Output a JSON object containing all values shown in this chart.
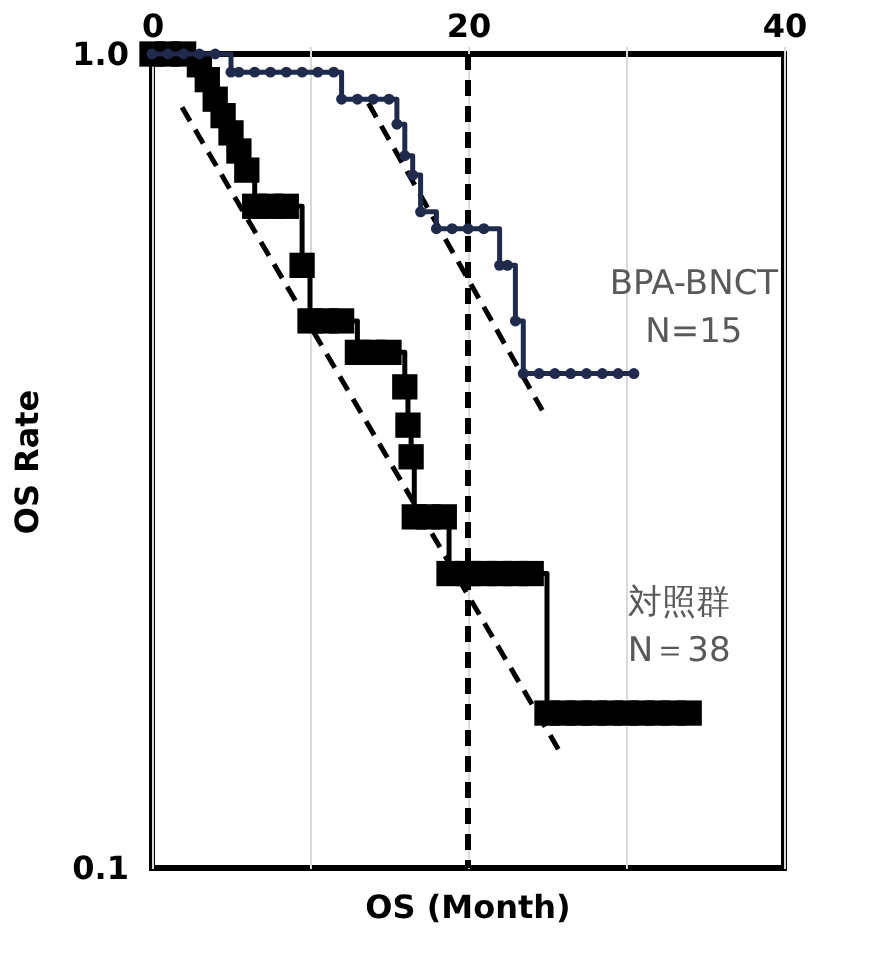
{
  "chart_data": {
    "type": "step",
    "xlabel": "OS (Month)",
    "ylabel": "OS Rate",
    "xlim": [
      0,
      40
    ],
    "xticks": [
      0,
      {
        "value": 10,
        "label": null
      },
      20,
      {
        "value": 30,
        "label": null
      },
      40
    ],
    "ylim": [
      0.1,
      1.0
    ],
    "yticks": [
      {
        "value": 0.1,
        "label": "0.1"
      },
      {
        "value": 1.0,
        "label": "1.0"
      }
    ],
    "log": "y",
    "grid": "x",
    "ref_lines": [
      {
        "axis": "x",
        "value": 20,
        "color": "#000000",
        "line_style": "dashed"
      }
    ],
    "series": [
      {
        "name": "BPA-BNCT\nN=15",
        "marker": "circle",
        "color": "#1f2a4d",
        "x": [
          0,
          1,
          2,
          3,
          4,
          5,
          5.5,
          6.5,
          7.5,
          8.5,
          9.5,
          10.5,
          11.5,
          12,
          13,
          14,
          15,
          15.5,
          16,
          16.5,
          17,
          18,
          19,
          20,
          21,
          22,
          22.5,
          23,
          23.5,
          24.5,
          25.5,
          26.5,
          27.5,
          28.5,
          29.5,
          30.5
        ],
        "values": [
          1,
          1,
          1,
          1,
          1,
          0.95,
          0.95,
          0.95,
          0.95,
          0.95,
          0.95,
          0.95,
          0.95,
          0.88,
          0.88,
          0.88,
          0.88,
          0.82,
          0.75,
          0.71,
          0.64,
          0.61,
          0.61,
          0.61,
          0.61,
          0.55,
          0.55,
          0.47,
          0.405,
          0.405,
          0.405,
          0.405,
          0.405,
          0.405,
          0.405,
          0.405
        ]
      },
      {
        "name": "対照群\nN＝38",
        "marker": "square",
        "color": "#000000",
        "x": [
          0,
          1,
          2,
          3,
          3.5,
          4,
          4.5,
          5,
          5.5,
          6,
          6.5,
          7.5,
          8.5,
          9.5,
          10,
          11,
          12,
          13,
          14,
          15,
          16,
          16.2,
          16.4,
          16.6,
          17.5,
          18.5,
          18.8,
          20,
          21,
          22,
          23,
          24,
          25,
          26,
          27,
          28,
          29,
          30,
          31,
          32,
          33,
          34
        ],
        "values": [
          1,
          1,
          1,
          0.97,
          0.93,
          0.88,
          0.84,
          0.8,
          0.76,
          0.72,
          0.65,
          0.65,
          0.65,
          0.55,
          0.47,
          0.47,
          0.47,
          0.43,
          0.43,
          0.43,
          0.39,
          0.35,
          0.32,
          0.27,
          0.27,
          0.27,
          0.23,
          0.23,
          0.23,
          0.23,
          0.23,
          0.23,
          0.155,
          0.155,
          0.155,
          0.155,
          0.155,
          0.155,
          0.155,
          0.155,
          0.155,
          0.155
        ]
      },
      {
        "type": "line",
        "line_style": "dashed",
        "marker": "none",
        "color": "#000000",
        "x": [
          1.9,
          25.9
        ],
        "values": [
          0.86,
          0.138
        ]
      },
      {
        "type": "line",
        "line_style": "dashed",
        "marker": "none",
        "color": "#000000",
        "x": [
          13.7,
          24.7
        ],
        "values": [
          0.87,
          0.365
        ]
      }
    ]
  }
}
